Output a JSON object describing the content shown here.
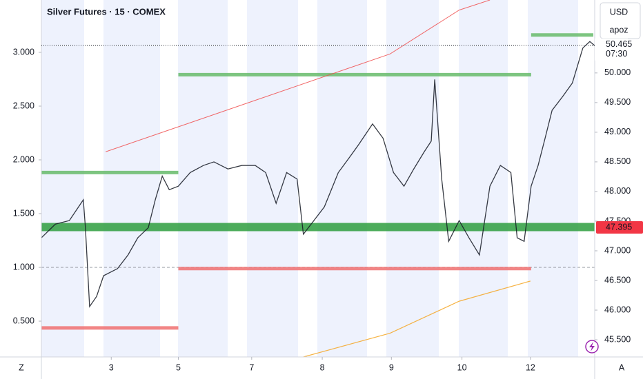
{
  "chart_data": {
    "type": "line",
    "title": "Silver Futures · 15 · COMEX",
    "currency": "USD",
    "user": "apoz",
    "corner_left": "Z",
    "corner_right": "A",
    "xlim": [
      -1.0,
      6.92
    ],
    "xticks": [
      {
        "value": 0,
        "label": "3"
      },
      {
        "value": 0.96,
        "label": "5"
      },
      {
        "value": 2.01,
        "label": "7"
      },
      {
        "value": 3.02,
        "label": "8"
      },
      {
        "value": 4.01,
        "label": "9"
      },
      {
        "value": 5.02,
        "label": "10"
      },
      {
        "value": 6.0,
        "label": "12"
      }
    ],
    "ylim": [
      45.21,
      51.23
    ],
    "yticks": [
      {
        "value": 45.5,
        "label": "45.500"
      },
      {
        "value": 46,
        "label": "46.000"
      },
      {
        "value": 46.5,
        "label": "46.500"
      },
      {
        "value": 47,
        "label": "47.000"
      },
      {
        "value": 47.5,
        "label": "47.500"
      },
      {
        "value": 48,
        "label": "48.000"
      },
      {
        "value": 48.5,
        "label": "48.500"
      },
      {
        "value": 49,
        "label": "49.000"
      },
      {
        "value": 49.5,
        "label": "49.500"
      },
      {
        "value": 50,
        "label": "50.000"
      }
    ],
    "y2lim": [
      0.167,
      3.487
    ],
    "y2ticks": [
      {
        "value": 0.5,
        "label": "0.500"
      },
      {
        "value": 1,
        "label": "1.000"
      },
      {
        "value": 1.5,
        "label": "1.500"
      },
      {
        "value": 2,
        "label": "2.000"
      },
      {
        "value": 2.5,
        "label": "2.500"
      },
      {
        "value": 3,
        "label": "3.000"
      }
    ],
    "baseline_y2": 1,
    "series": [
      {
        "color": "#131722",
        "x": [
          -1.0,
          -0.8,
          -0.6,
          -0.4,
          -0.37,
          -0.31,
          -0.21,
          -0.11,
          0.09,
          0.24,
          0.38,
          0.53,
          0.63,
          0.73,
          0.83,
          0.96,
          1.13,
          1.32,
          1.47,
          1.67,
          1.87,
          2.06,
          2.21,
          2.36,
          2.51,
          2.66,
          2.75,
          2.9,
          3.05,
          3.25,
          3.4,
          3.54,
          3.74,
          3.89,
          4.04,
          4.19,
          4.33,
          4.48,
          4.58,
          4.63,
          4.73,
          4.83,
          4.98,
          5.12,
          5.27,
          5.42,
          5.57,
          5.72,
          5.81,
          5.91,
          6.01,
          6.11,
          6.21,
          6.31,
          6.46,
          6.6,
          6.75,
          6.85,
          6.92
        ],
        "values": [
          47.22,
          47.45,
          47.51,
          47.86,
          47.39,
          46.06,
          46.23,
          46.58,
          46.7,
          46.93,
          47.22,
          47.39,
          47.86,
          48.26,
          48.03,
          48.09,
          48.32,
          48.44,
          48.5,
          48.38,
          48.44,
          48.44,
          48.32,
          47.8,
          48.32,
          48.21,
          47.28,
          47.51,
          47.74,
          48.32,
          48.56,
          48.79,
          49.14,
          48.9,
          48.32,
          48.09,
          48.38,
          48.67,
          48.85,
          49.89,
          48.21,
          47.16,
          47.51,
          47.22,
          46.93,
          48.09,
          48.44,
          48.32,
          47.22,
          47.16,
          48.09,
          48.44,
          48.9,
          49.37,
          49.6,
          49.83,
          50.42,
          50.53,
          50.46
        ]
      }
    ],
    "lines": [
      {
        "color": "#66bb6a",
        "width": 5,
        "x": [
          -1.0,
          0.96
        ],
        "values": [
          48.32,
          48.32
        ]
      },
      {
        "color": "#66bb6a",
        "width": 5,
        "x": [
          0.96,
          6.01
        ],
        "values": [
          49.97,
          49.97
        ]
      },
      {
        "color": "#66bb6a",
        "width": 5,
        "x": [
          6.01,
          6.9
        ],
        "values": [
          50.64,
          50.64
        ]
      },
      {
        "color": "#2e9e3e",
        "width": 12,
        "x": [
          -1.0,
          6.92
        ],
        "values": [
          47.4,
          47.4
        ]
      },
      {
        "color": "#f07070",
        "width": 5,
        "x": [
          -1.0,
          0.96
        ],
        "values": [
          45.7,
          45.7
        ]
      },
      {
        "color": "#f07070",
        "width": 5,
        "x": [
          0.96,
          6.01
        ],
        "values": [
          46.7,
          46.7
        ]
      },
      {
        "color": "#f05050",
        "width": 1,
        "x": [
          -0.08,
          3.99,
          4.98,
          5.42
        ],
        "values": [
          48.67,
          50.32,
          51.06,
          51.23
        ]
      },
      {
        "color": "#f5a623",
        "width": 1.2,
        "x": [
          2.75,
          3.99,
          4.98,
          6.0
        ],
        "values": [
          45.21,
          45.61,
          46.15,
          46.49
        ]
      }
    ],
    "last_price": {
      "value": 50.465,
      "label": "50.465"
    },
    "countdown": "07:30",
    "level_label": {
      "value": 47.395,
      "label": "47.395"
    }
  }
}
